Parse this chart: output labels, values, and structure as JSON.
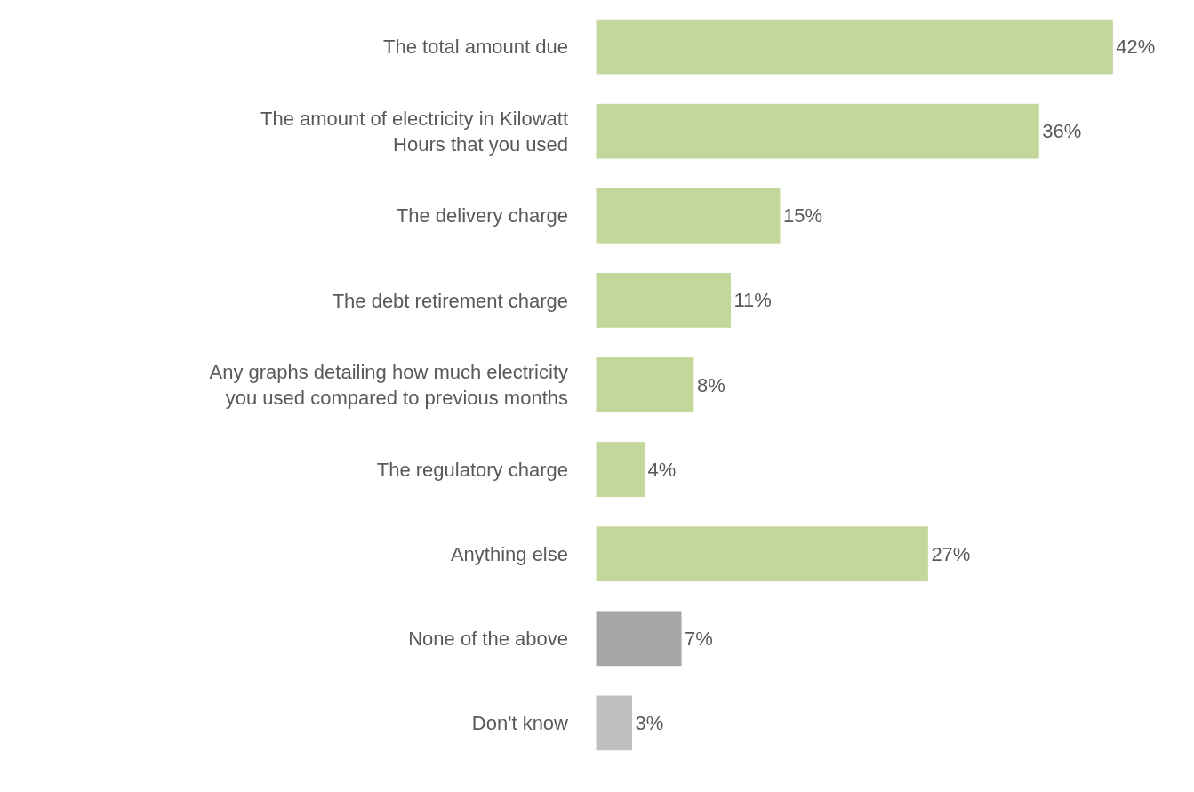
{
  "chart_data": {
    "type": "bar",
    "orientation": "horizontal",
    "categories": [
      "The total amount due",
      "The amount of electricity in Kilowatt\nHours that you used",
      "The delivery charge",
      "The debt retirement charge",
      "Any graphs detailing how much electricity\nyou used compared to previous months",
      "The regulatory charge",
      "Anything else",
      "None of the above",
      "Don't know"
    ],
    "values": [
      42,
      36,
      15,
      11,
      8,
      4,
      27,
      7,
      3
    ],
    "colors": [
      "#c4d79b",
      "#c4d79b",
      "#c4d79b",
      "#c4d79b",
      "#c4d79b",
      "#c4d79b",
      "#c4d79b",
      "#a6a6a6",
      "#bfbfbf"
    ],
    "value_labels": [
      "42%",
      "36%",
      "15%",
      "11%",
      "8%",
      "4%",
      "27%",
      "7%",
      "3%"
    ],
    "legend": false
  }
}
